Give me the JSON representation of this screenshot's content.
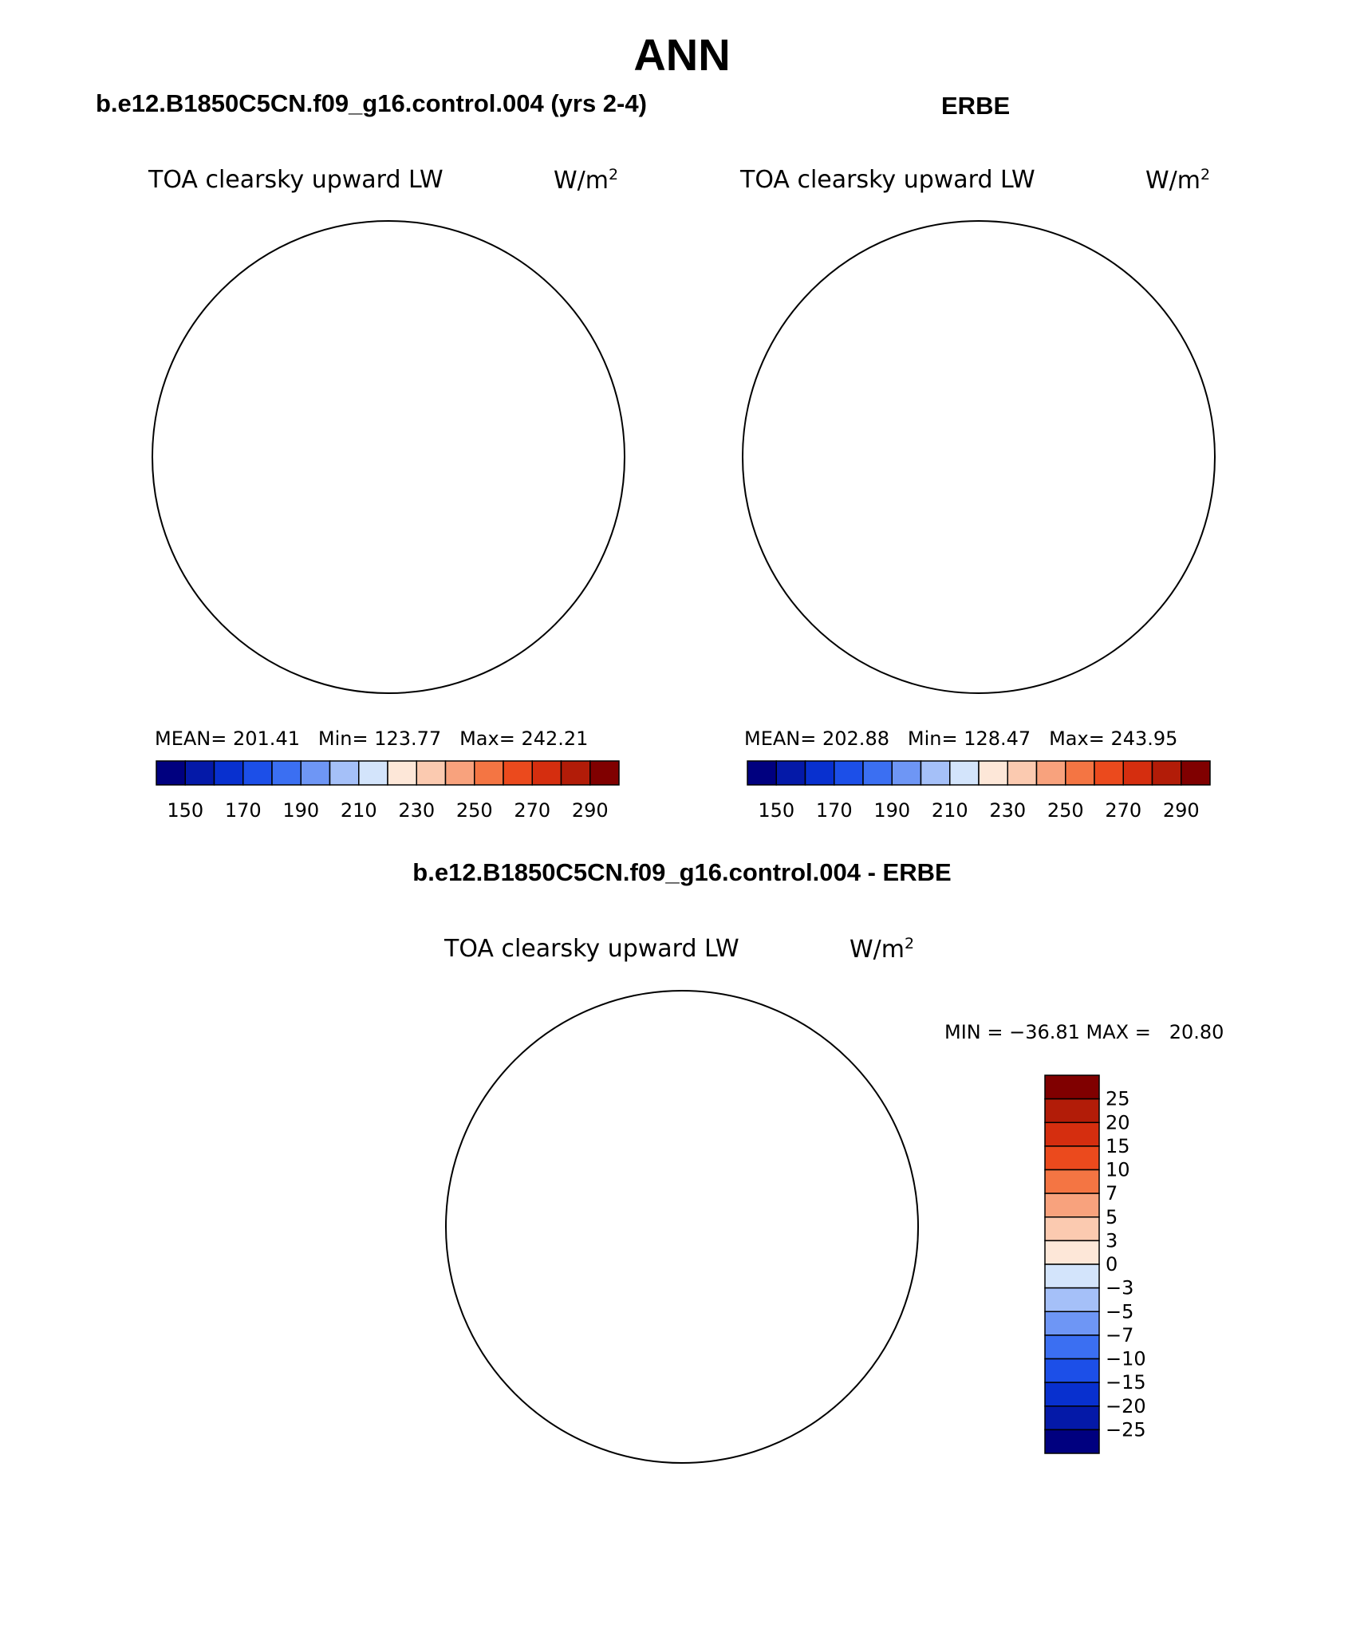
{
  "title": "ANN",
  "panels": [
    {
      "case_title": "b.e12.B1850C5CN.f09_g16.control.004 (yrs 2-4)",
      "variable": "TOA clearsky upward LW",
      "units_base": "W/m",
      "units_exp": "2",
      "stats": {
        "mean_label": "MEAN=",
        "mean": "201.41",
        "min_label": "Min=",
        "min": "123.77",
        "max_label": "Max=",
        "max": "242.21"
      }
    },
    {
      "case_title": "ERBE",
      "variable": "TOA clearsky upward LW",
      "units_base": "W/m",
      "units_exp": "2",
      "stats": {
        "mean_label": "MEAN=",
        "mean": "202.88",
        "min_label": "Min=",
        "min": "128.47",
        "max_label": "Max=",
        "max": "243.95"
      }
    }
  ],
  "diff_panel": {
    "case_title": "b.e12.B1850C5CN.f09_g16.control.004 - ERBE",
    "variable": "TOA clearsky upward LW",
    "units_base": "W/m",
    "units_exp": "2",
    "minmax": "MIN = −36.81 MAX =   20.80"
  },
  "abs_colorbar": {
    "labels": [
      "150",
      "170",
      "190",
      "210",
      "230",
      "250",
      "270",
      "290"
    ],
    "colors": [
      "#00007f",
      "#0419a8",
      "#0830cf",
      "#1c4fe8",
      "#3b6ff2",
      "#6e96f5",
      "#a5c0f8",
      "#d3e4fb",
      "#fde7d8",
      "#fbcab0",
      "#f8a27d",
      "#f47543",
      "#eb4a1d",
      "#d52e0f",
      "#b21c08",
      "#800000"
    ]
  },
  "diff_colorbar": {
    "labels": [
      "25",
      "20",
      "15",
      "10",
      "7",
      "5",
      "3",
      "0",
      "−3",
      "−5",
      "−7",
      "−10",
      "−15",
      "−20",
      "−25"
    ],
    "colors": [
      "#800000",
      "#b21c08",
      "#d52e0f",
      "#eb4a1d",
      "#f47543",
      "#f8a27d",
      "#fbcab0",
      "#fde7d8",
      "#d3e4fb",
      "#a5c0f8",
      "#6e96f5",
      "#3b6ff2",
      "#1c4fe8",
      "#0830cf",
      "#0419a8",
      "#00007f"
    ]
  }
}
